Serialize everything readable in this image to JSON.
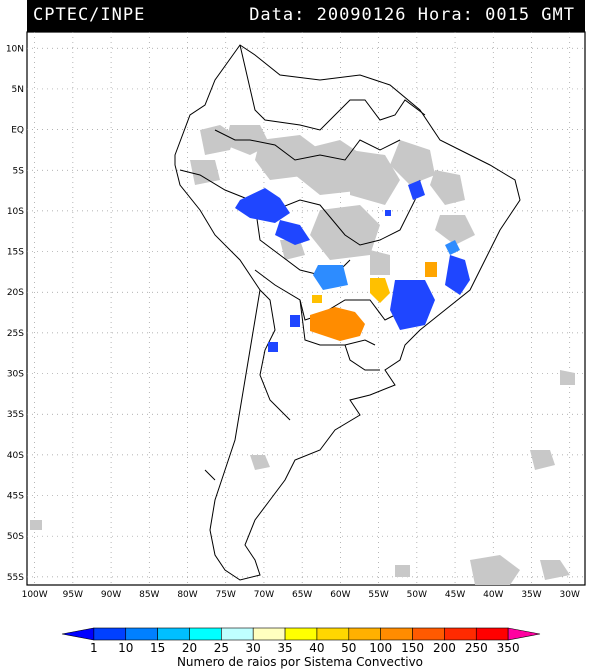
{
  "header": {
    "left": "CPTEC/INPE",
    "right": "Data: 20090126 Hora: 0015 GMT"
  },
  "map": {
    "lat_labels": [
      "10N",
      "5N",
      "EQ",
      "5S",
      "10S",
      "15S",
      "20S",
      "25S",
      "30S",
      "35S",
      "40S",
      "45S",
      "50S",
      "55S"
    ],
    "lon_labels": [
      "100W",
      "95W",
      "90W",
      "85W",
      "80W",
      "75W",
      "70W",
      "65W",
      "60W",
      "55W",
      "50W",
      "45W",
      "40W",
      "35W",
      "30W"
    ],
    "lat_range": [
      -56,
      12
    ],
    "lon_range": [
      -101,
      -28
    ],
    "grid": true
  },
  "colorbar": {
    "ticks": [
      "1",
      "10",
      "15",
      "20",
      "25",
      "30",
      "35",
      "40",
      "50",
      "100",
      "150",
      "200",
      "250",
      "350"
    ],
    "colors": [
      "#0000ff",
      "#0040ff",
      "#0080ff",
      "#00bfff",
      "#00ffff",
      "#bfffff",
      "#ffffbf",
      "#ffff00",
      "#ffd700",
      "#ffb000",
      "#ff8c00",
      "#ff5a00",
      "#ff2a00",
      "#ff0000",
      "#ff00a0"
    ],
    "title": "Numero de raios por Sistema Convectivo"
  },
  "legend_colors": {
    "cloud": "#c8c8c8",
    "blue": "#1f46ff",
    "lightblue": "#2d8cff",
    "orange": "#ff8c00",
    "yellow": "#ffc000"
  }
}
